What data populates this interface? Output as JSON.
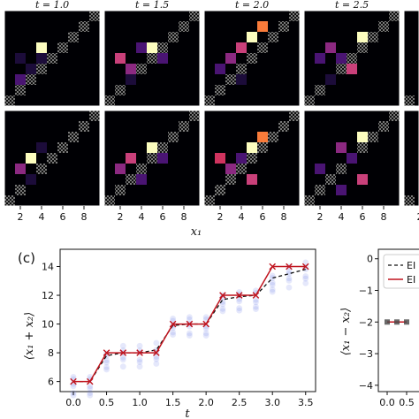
{
  "heatmaps": {
    "titles": [
      "t = 1.0",
      "t = 1.5",
      "t = 2.0",
      "t = 2.5"
    ],
    "x_ticks": [
      "2",
      "4",
      "6",
      "8"
    ],
    "x_label": "x₁",
    "partial_fifth_tick": "2",
    "grid_size": 9
  },
  "panel_c": {
    "letter": "(c)",
    "xlabel": "t",
    "ylabel": "⟨x₁ + x₂⟩",
    "x_ticks": [
      "0.0",
      "0.5",
      "1.0",
      "1.5",
      "2.0",
      "2.5",
      "3.0",
      "3.5"
    ],
    "y_ticks": [
      "6",
      "8",
      "10",
      "12",
      "14"
    ]
  },
  "panel_d": {
    "ylabel": "⟨x₁ − x₂⟩",
    "y_ticks": [
      "0",
      "−1",
      "−2",
      "−3",
      "−4"
    ],
    "x_ticks": [
      "0.0",
      "0.5"
    ],
    "legend": [
      "EI",
      "EI"
    ]
  },
  "colors": {
    "background": "#ffffff",
    "heatmap_bg": "#000004",
    "dashed_line": "#111111",
    "red_line": "#c0141e",
    "blue_dots": "#6f7fe8"
  },
  "chart_data": [
    {
      "type": "line",
      "x": [
        0.0,
        0.25,
        0.5,
        0.75,
        1.0,
        1.25,
        1.5,
        1.75,
        2.0,
        2.25,
        2.5,
        2.75,
        3.0,
        3.25,
        3.5
      ],
      "series": [
        {
          "style": "red-x",
          "values": [
            6,
            6,
            8,
            8,
            8,
            8,
            10,
            10,
            10,
            12,
            12,
            12,
            14,
            14,
            14
          ]
        },
        {
          "style": "black-dashed",
          "values": [
            6,
            6,
            7.8,
            8,
            8,
            8.2,
            9.9,
            10,
            10,
            11.7,
            11.9,
            12,
            13.2,
            13.5,
            13.8
          ]
        }
      ],
      "xlabel": "t",
      "ylabel": "⟨x₁ + x₂⟩",
      "xlim": [
        -0.2,
        3.65
      ],
      "ylim": [
        5.3,
        15.2
      ]
    },
    {
      "type": "line",
      "x": [
        0.0,
        0.25,
        0.5
      ],
      "series": [
        {
          "style": "red-x",
          "values": [
            -2,
            -2,
            -2
          ]
        }
      ],
      "ylabel": "⟨x₁ − x₂⟩",
      "ylim": [
        -4.2,
        0.3
      ]
    }
  ]
}
